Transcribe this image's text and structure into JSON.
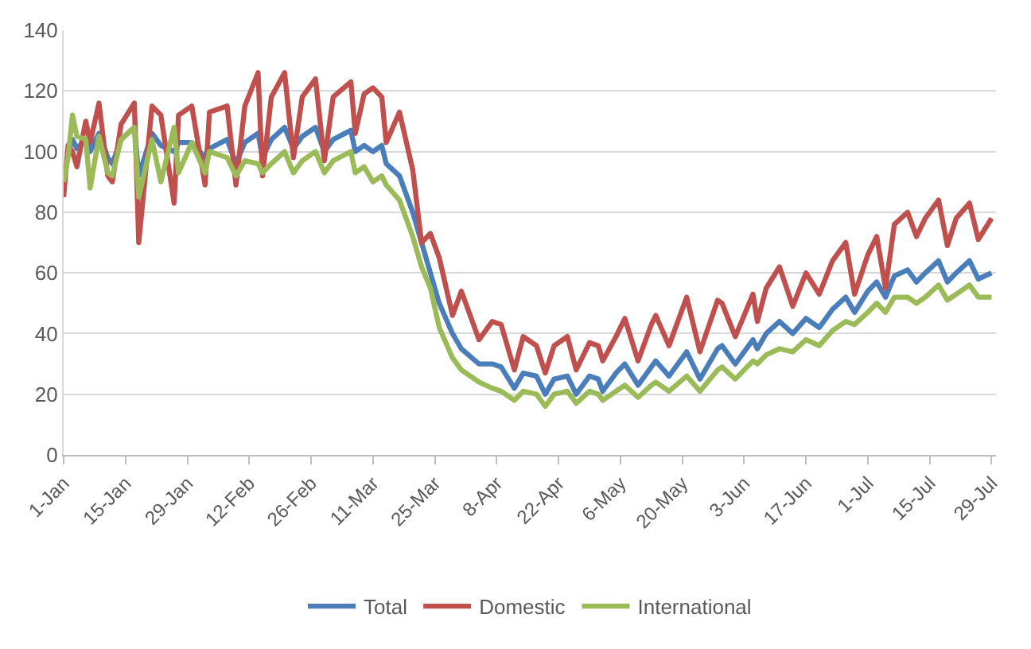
{
  "chart_data": {
    "type": "line",
    "x": [
      "--01-01",
      "--01-02",
      "--01-03",
      "--01-04",
      "--01-06",
      "--01-07",
      "--01-09",
      "--01-11",
      "--01-12",
      "--01-14",
      "--01-17",
      "--01-18",
      "--01-21",
      "--01-23",
      "--01-26",
      "--01-27",
      "--01-30",
      "--02-02",
      "--02-03",
      "--02-07",
      "--02-09",
      "--02-11",
      "--02-14",
      "--02-15",
      "--02-17",
      "--02-20",
      "--02-22",
      "--02-24",
      "--02-27",
      "--02-29",
      "--03-02",
      "--03-06",
      "--03-07",
      "--03-09",
      "--03-11",
      "--03-13",
      "--03-14",
      "--03-17",
      "--03-20",
      "--03-22",
      "--03-24",
      "--03-26",
      "--03-29",
      "--03-31",
      "--04-04",
      "--04-07",
      "--04-09",
      "--04-12",
      "--04-14",
      "--04-17",
      "--04-19",
      "--04-21",
      "--04-24",
      "--04-26",
      "--04-29",
      "--05-01",
      "--05-02",
      "--05-05",
      "--05-07",
      "--05-10",
      "--05-13",
      "--05-14",
      "--05-17",
      "--05-21",
      "--05-24",
      "--05-28",
      "--05-29",
      "--06-01",
      "--06-05",
      "--06-06",
      "--06-08",
      "--06-11",
      "--06-14",
      "--06-17",
      "--06-20",
      "--06-23",
      "--06-26",
      "--06-28",
      "--07-01",
      "--07-03",
      "--07-05",
      "--07-07",
      "--07-10",
      "--07-12",
      "--07-14",
      "--07-17",
      "--07-19",
      "--07-21",
      "--07-24",
      "--07-26",
      "--07-29"
    ],
    "series": [
      {
        "name": "Total",
        "color": "#4a7ebb",
        "values": [
          null,
          100,
          104,
          101,
          104,
          100,
          106,
          98,
          96,
          104,
          108,
          92,
          106,
          102,
          100,
          103,
          103,
          98,
          101,
          104,
          96,
          103,
          106,
          98,
          104,
          108,
          101,
          105,
          108,
          100,
          104,
          107,
          100,
          102,
          100,
          102,
          96,
          92,
          80,
          70,
          60,
          50,
          40,
          35,
          30,
          30,
          29,
          22,
          27,
          26,
          20,
          25,
          26,
          20,
          26,
          25,
          21,
          27,
          30,
          23,
          29,
          31,
          26,
          34,
          25,
          35,
          36,
          30,
          38,
          35,
          40,
          44,
          40,
          45,
          42,
          48,
          52,
          47,
          54,
          57,
          52,
          59,
          61,
          57,
          60,
          64,
          57,
          60,
          64,
          58,
          60
        ]
      },
      {
        "name": "Domestic",
        "color": "#c0504d",
        "values": [
          85,
          102,
          100,
          95,
          110,
          103,
          116,
          92,
          90,
          109,
          116,
          70,
          115,
          112,
          83,
          112,
          115,
          89,
          113,
          115,
          89,
          115,
          126,
          92,
          118,
          126,
          98,
          118,
          124,
          97,
          118,
          123,
          106,
          119,
          121,
          118,
          103,
          113,
          94,
          70,
          73,
          65,
          46,
          54,
          38,
          44,
          43,
          28,
          39,
          36,
          27,
          36,
          39,
          28,
          37,
          36,
          31,
          39,
          45,
          31,
          43,
          46,
          36,
          52,
          34,
          51,
          50,
          39,
          53,
          44,
          55,
          62,
          49,
          60,
          53,
          64,
          70,
          53,
          66,
          72,
          55,
          76,
          80,
          72,
          78,
          84,
          69,
          78,
          83,
          71,
          78
        ]
      },
      {
        "name": "International",
        "color": "#9bbb59",
        "values": [
          90,
          98,
          112,
          105,
          104,
          88,
          105,
          93,
          92,
          104,
          108,
          85,
          104,
          90,
          108,
          93,
          103,
          93,
          100,
          98,
          92,
          97,
          96,
          93,
          96,
          100,
          93,
          97,
          100,
          93,
          97,
          100,
          93,
          95,
          90,
          92,
          89,
          84,
          72,
          62,
          55,
          42,
          32,
          28,
          24,
          22,
          21,
          18,
          21,
          20,
          16,
          20,
          21,
          17,
          21,
          20,
          18,
          21,
          23,
          19,
          23,
          24,
          21,
          26,
          21,
          28,
          29,
          25,
          31,
          30,
          33,
          35,
          34,
          38,
          36,
          41,
          44,
          43,
          47,
          50,
          47,
          52,
          52,
          50,
          52,
          56,
          51,
          53,
          56,
          52,
          52
        ]
      }
    ],
    "xlim": [
      "--01-01",
      "--07-30"
    ],
    "xticks": [
      {
        "value": "--01-01",
        "label": "1-Jan"
      },
      {
        "value": "--01-15",
        "label": "15-Jan"
      },
      {
        "value": "--01-29",
        "label": "29-Jan"
      },
      {
        "value": "--02-12",
        "label": "12-Feb"
      },
      {
        "value": "--02-26",
        "label": "26-Feb"
      },
      {
        "value": "--03-11",
        "label": "11-Mar"
      },
      {
        "value": "--03-25",
        "label": "25-Mar"
      },
      {
        "value": "--04-08",
        "label": "8-Apr"
      },
      {
        "value": "--04-22",
        "label": "22-Apr"
      },
      {
        "value": "--05-06",
        "label": "6-May"
      },
      {
        "value": "--05-20",
        "label": "20-May"
      },
      {
        "value": "--06-03",
        "label": "3-Jun"
      },
      {
        "value": "--06-17",
        "label": "17-Jun"
      },
      {
        "value": "--07-01",
        "label": "1-Jul"
      },
      {
        "value": "--07-15",
        "label": "15-Jul"
      },
      {
        "value": "--07-29",
        "label": "29-Jul"
      }
    ],
    "ylim": [
      0,
      140
    ],
    "yticks": [
      0,
      20,
      40,
      60,
      80,
      100,
      120,
      140
    ],
    "grid": "y",
    "legend": "bottom",
    "marker": "none",
    "line_style": "solid"
  }
}
